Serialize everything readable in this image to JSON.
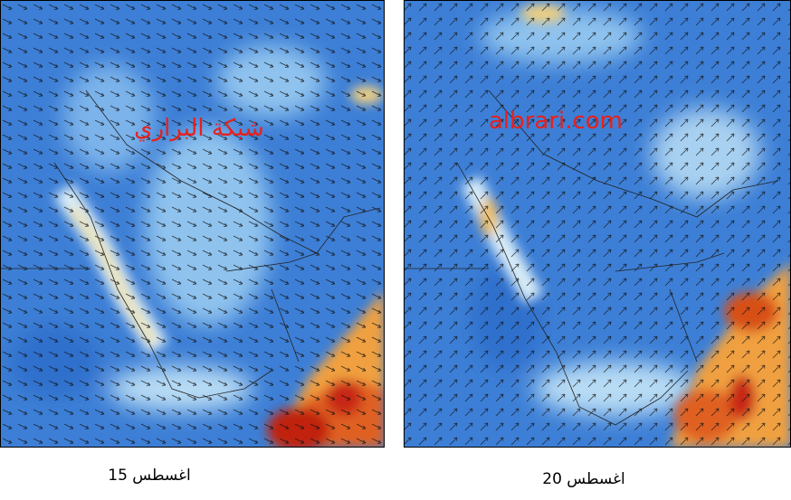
{
  "panels": [
    {
      "watermark": "شبكة البراري",
      "caption": "اغسطس 15"
    },
    {
      "watermark": "albrari.com",
      "caption": "اغسطس 20"
    }
  ]
}
